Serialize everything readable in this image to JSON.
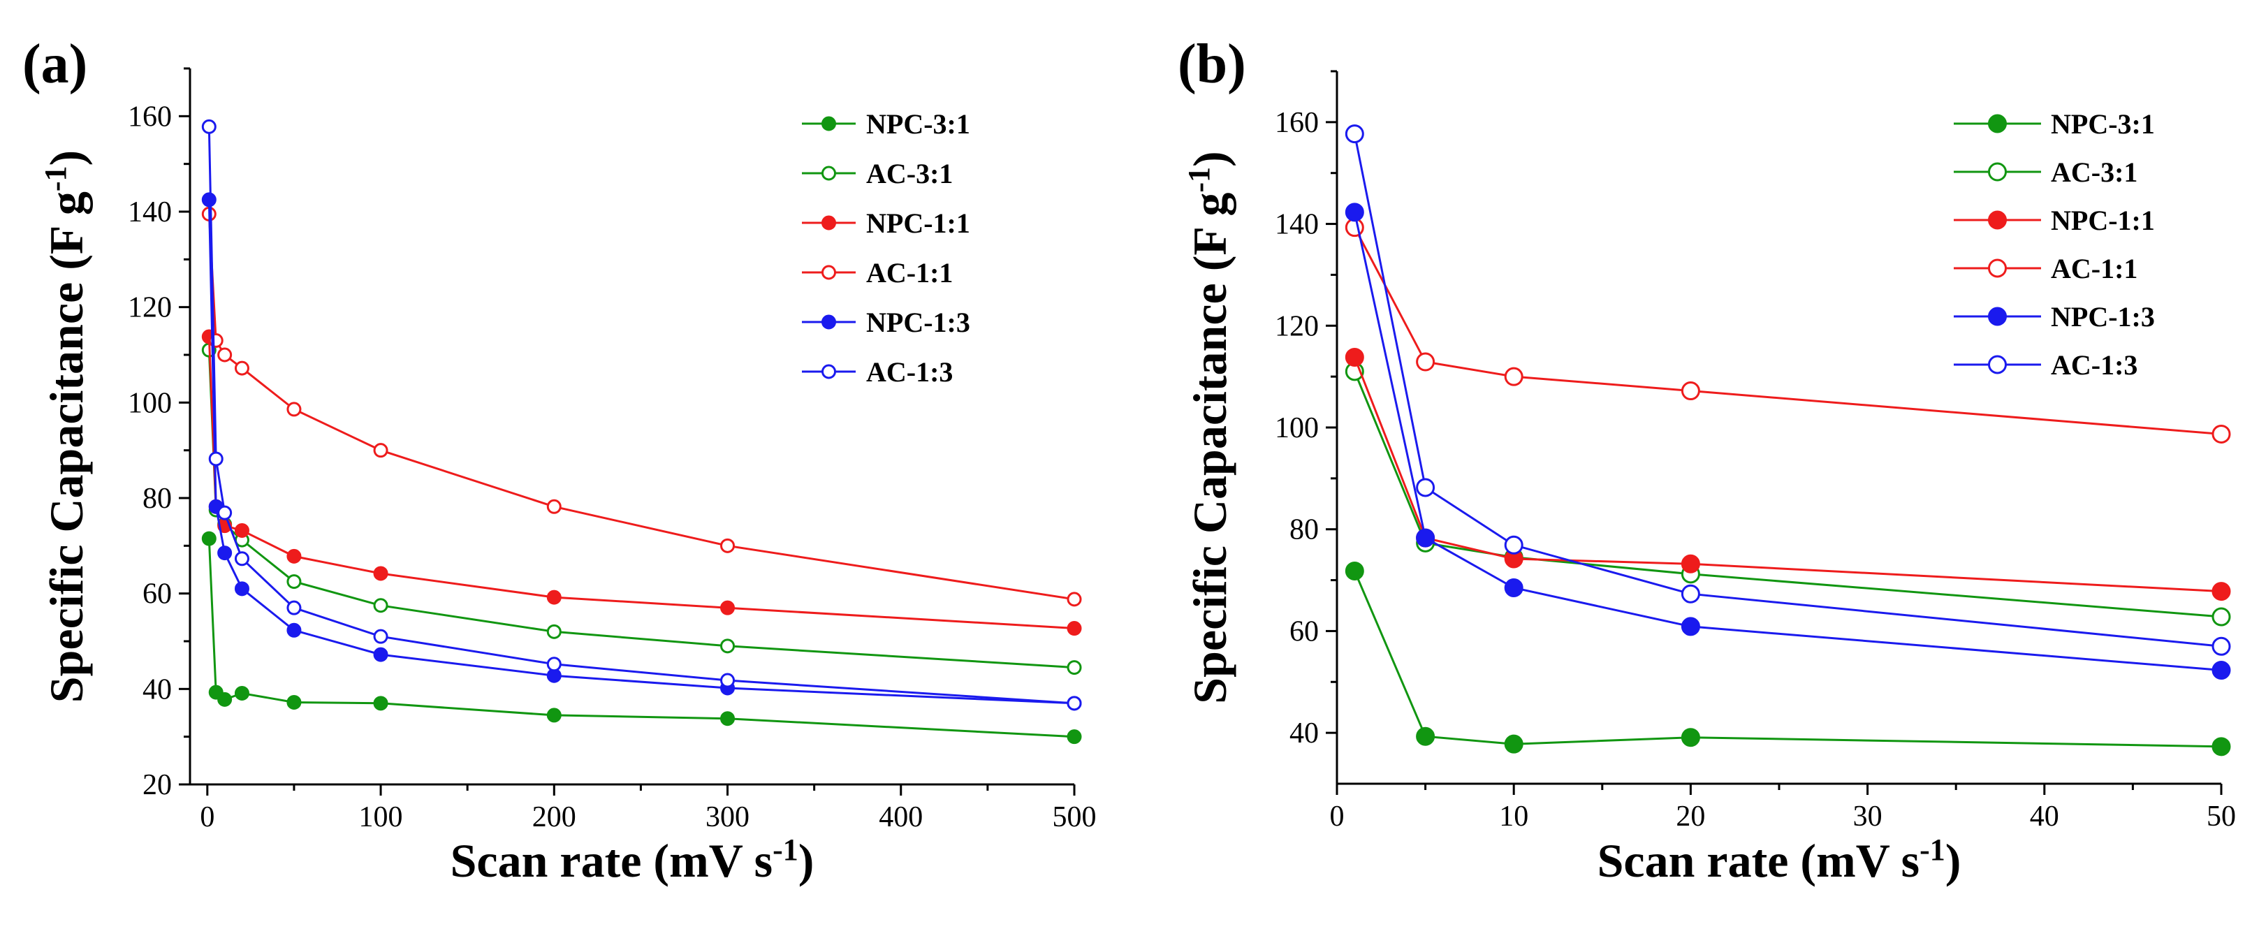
{
  "chart_data": [
    {
      "type": "line",
      "panel_label": "(a)",
      "xlabel": "Scan rate (mV s",
      "xlabel_sup": "-1",
      "xlabel_end": ")",
      "ylabel": "Specific Capacitance (F g",
      "ylabel_sup": "-1",
      "ylabel_end": ")",
      "xlim": [
        -10,
        500
      ],
      "ylim": [
        20,
        170
      ],
      "xticks": [
        0,
        100,
        200,
        300,
        400,
        500
      ],
      "yticks": [
        20,
        40,
        60,
        80,
        100,
        120,
        140,
        160
      ],
      "legend_position": "top-right",
      "series": [
        {
          "name": "NPC-3:1",
          "color": "#119611",
          "filled": true,
          "x": [
            1,
            5,
            10,
            20,
            50,
            100,
            200,
            300,
            500
          ],
          "y": [
            71.5,
            39.3,
            37.8,
            39.1,
            37.2,
            37.0,
            34.5,
            33.8,
            30.0
          ]
        },
        {
          "name": "AC-3:1",
          "color": "#119611",
          "filled": false,
          "x": [
            1,
            5,
            10,
            20,
            50,
            100,
            200,
            300,
            500
          ],
          "y": [
            111.0,
            77.5,
            74.5,
            71.2,
            62.5,
            57.5,
            52.0,
            49.0,
            44.5
          ]
        },
        {
          "name": "NPC-1:1",
          "color": "#ee1c1c",
          "filled": true,
          "x": [
            1,
            5,
            10,
            20,
            50,
            100,
            200,
            300,
            500
          ],
          "y": [
            113.8,
            78.2,
            74.2,
            73.2,
            67.8,
            64.2,
            59.2,
            57.0,
            52.7
          ]
        },
        {
          "name": "AC-1:1",
          "color": "#ee1c1c",
          "filled": false,
          "x": [
            1,
            5,
            10,
            20,
            50,
            100,
            200,
            300,
            500
          ],
          "y": [
            139.5,
            113.0,
            110.0,
            107.2,
            98.6,
            90.0,
            78.2,
            70.0,
            58.8
          ]
        },
        {
          "name": "NPC-1:3",
          "color": "#1a1aee",
          "filled": true,
          "x": [
            1,
            5,
            10,
            20,
            50,
            100,
            200,
            300,
            500
          ],
          "y": [
            142.5,
            78.2,
            68.5,
            61.0,
            52.3,
            47.2,
            42.8,
            40.2,
            37.0
          ]
        },
        {
          "name": "AC-1:3",
          "color": "#1a1aee",
          "filled": false,
          "x": [
            1,
            5,
            10,
            20,
            50,
            100,
            200,
            300,
            500
          ],
          "y": [
            157.8,
            88.2,
            76.9,
            67.3,
            57.0,
            51.0,
            45.2,
            41.8,
            37.0
          ]
        }
      ]
    },
    {
      "type": "line",
      "panel_label": "(b)",
      "xlabel": "Scan rate (mV s",
      "xlabel_sup": "-1",
      "xlabel_end": ")",
      "ylabel": "Specific Capacitance (F g",
      "ylabel_sup": "-1",
      "ylabel_end": ")",
      "xlim": [
        0,
        50
      ],
      "ylim": [
        30,
        170
      ],
      "xticks": [
        0,
        10,
        20,
        30,
        40,
        50
      ],
      "yticks": [
        40,
        60,
        80,
        100,
        120,
        140,
        160
      ],
      "legend_position": "top-right",
      "series": [
        {
          "name": "NPC-3:1",
          "color": "#119611",
          "filled": true,
          "x": [
            1,
            5,
            10,
            20,
            50
          ],
          "y": [
            71.8,
            39.3,
            37.8,
            39.1,
            37.3
          ]
        },
        {
          "name": "AC-3:1",
          "color": "#119611",
          "filled": false,
          "x": [
            1,
            5,
            10,
            20,
            50
          ],
          "y": [
            111.0,
            77.3,
            74.5,
            71.2,
            62.8
          ]
        },
        {
          "name": "NPC-1:1",
          "color": "#ee1c1c",
          "filled": true,
          "x": [
            1,
            5,
            10,
            20,
            50
          ],
          "y": [
            113.8,
            78.3,
            74.2,
            73.2,
            67.8
          ]
        },
        {
          "name": "AC-1:1",
          "color": "#ee1c1c",
          "filled": false,
          "x": [
            1,
            5,
            10,
            20,
            50
          ],
          "y": [
            139.3,
            112.9,
            110.0,
            107.2,
            98.7
          ]
        },
        {
          "name": "NPC-1:3",
          "color": "#1a1aee",
          "filled": true,
          "x": [
            1,
            5,
            10,
            20,
            50
          ],
          "y": [
            142.3,
            78.3,
            68.5,
            60.9,
            52.3
          ]
        },
        {
          "name": "AC-1:3",
          "color": "#1a1aee",
          "filled": false,
          "x": [
            1,
            5,
            10,
            20,
            50
          ],
          "y": [
            157.7,
            88.2,
            76.9,
            67.3,
            57.0
          ]
        }
      ]
    }
  ]
}
